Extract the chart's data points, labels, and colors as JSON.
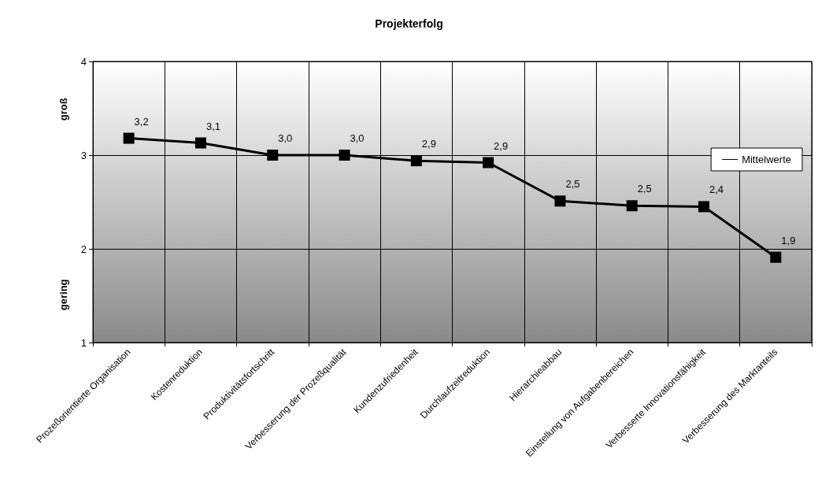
{
  "chart_data": {
    "type": "line",
    "title": "Projekterfolg",
    "categories": [
      "Prozeßorientierte Organisation",
      "Kostenreduktion",
      "Produktivitätsfortschritt",
      "Verbesserung der Prozeßqualität",
      "Kundenzufriedenheit",
      "Durchlaufzeitreduktion",
      "Hierarchieabbau",
      "Einstellung von Aufgabenbereichen",
      "Verbesserte Innovationsfähigkeit",
      "Verbesserung des Marktanteils"
    ],
    "series": [
      {
        "name": "Mittelwerte",
        "color": "#000000",
        "values": [
          3.18,
          3.13,
          3.0,
          3.0,
          2.94,
          2.92,
          2.51,
          2.46,
          2.45,
          1.91
        ],
        "value_labels": [
          "3,2",
          "3,1",
          "3,0",
          "3,0",
          "2,9",
          "2,9",
          "2,5",
          "2,5",
          "2,4",
          "1,9"
        ]
      }
    ],
    "ylim": [
      1,
      4
    ],
    "yticks": [
      1,
      2,
      3,
      4
    ],
    "grid": true,
    "legend": "right",
    "marker": "square",
    "line_style": "solid",
    "annotations": [
      "groß",
      "gering"
    ]
  }
}
